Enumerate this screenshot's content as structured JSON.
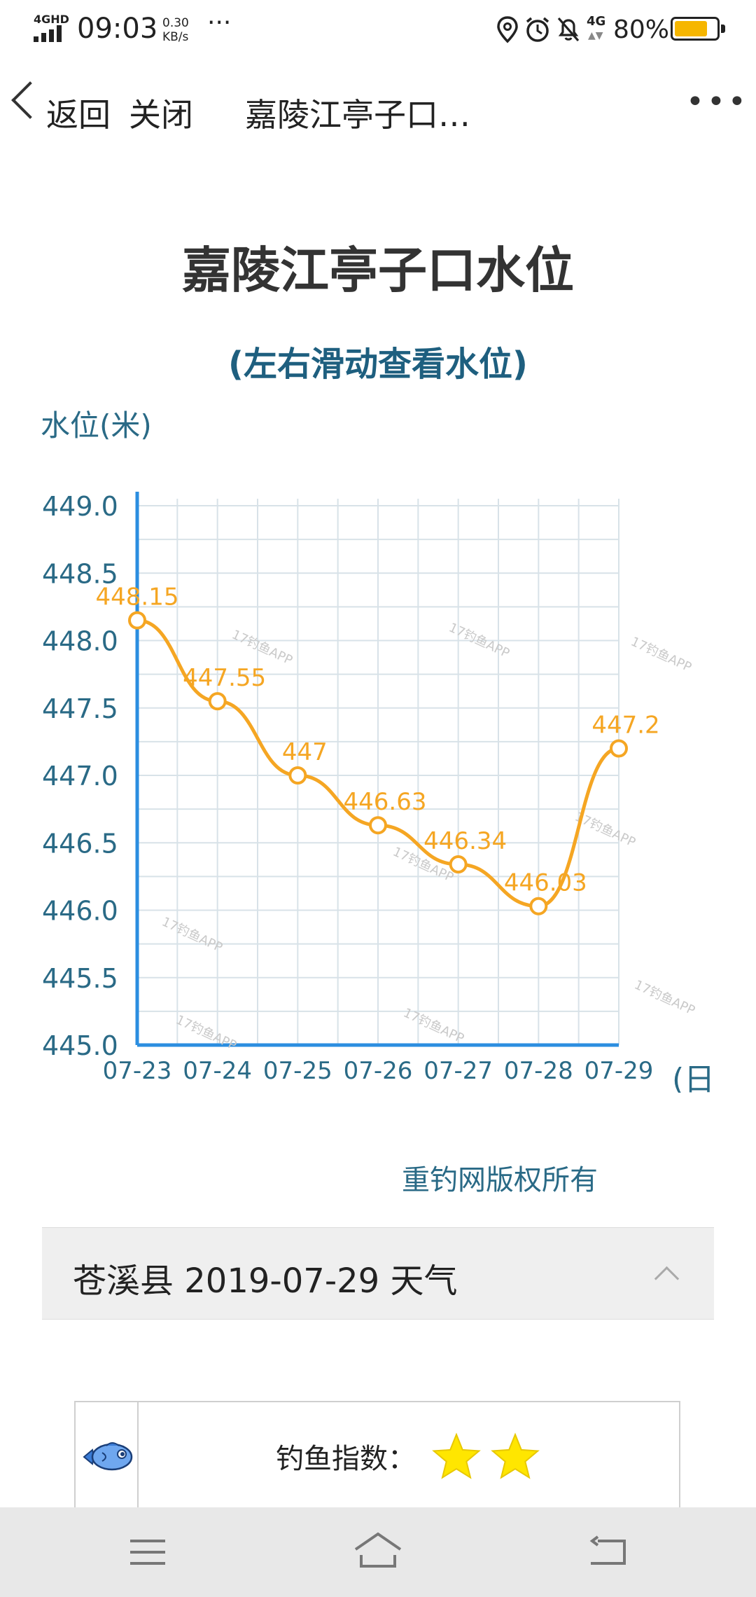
{
  "status_bar": {
    "network": "4GHD",
    "time": "09:03",
    "speed_value": "0.30",
    "speed_unit": "KB/s",
    "more": "···",
    "net2": "4G",
    "battery": "80%",
    "battery_level": 0.8,
    "battery_color": "#f6b600"
  },
  "nav": {
    "back": "返回",
    "close": "关闭",
    "title": "嘉陵江亭子口…",
    "more": "•••"
  },
  "page": {
    "chart_title": "嘉陵江亭子口水位",
    "chart_subtitle": "(左右滑动查看水位)",
    "copyright": "重钓网版权所有"
  },
  "chart_data": {
    "type": "line",
    "title": "嘉陵江亭子口水位",
    "subtitle": "(左右滑动查看水位)",
    "ylabel": "水位(米)",
    "xlabel": "(日",
    "categories": [
      "07-23",
      "07-24",
      "07-25",
      "07-26",
      "07-27",
      "07-28",
      "07-29"
    ],
    "values": [
      448.15,
      447.55,
      447,
      446.63,
      446.34,
      446.03,
      447.2
    ],
    "point_labels": [
      "448.15",
      "447.55",
      "447",
      "446.63",
      "446.34",
      "446.03",
      "447.2"
    ],
    "ylim": [
      445.0,
      449.0
    ],
    "yticks": [
      "445.0",
      "445.5",
      "446.0",
      "446.5",
      "447.0",
      "447.5",
      "448.0",
      "448.5",
      "449.0"
    ],
    "grid": true,
    "series_color": "#f5a623",
    "axis_color": "#2b8ee0",
    "watermark": "17钓鱼APP"
  },
  "weather": {
    "title": "苍溪县 2019-07-29 天气"
  },
  "fishing": {
    "label": "钓鱼指数：",
    "stars": 2,
    "star_color": "#ffe600"
  },
  "system_nav": {
    "menu_icon": "menu-icon",
    "home_icon": "home-icon",
    "back_icon": "back-icon"
  }
}
